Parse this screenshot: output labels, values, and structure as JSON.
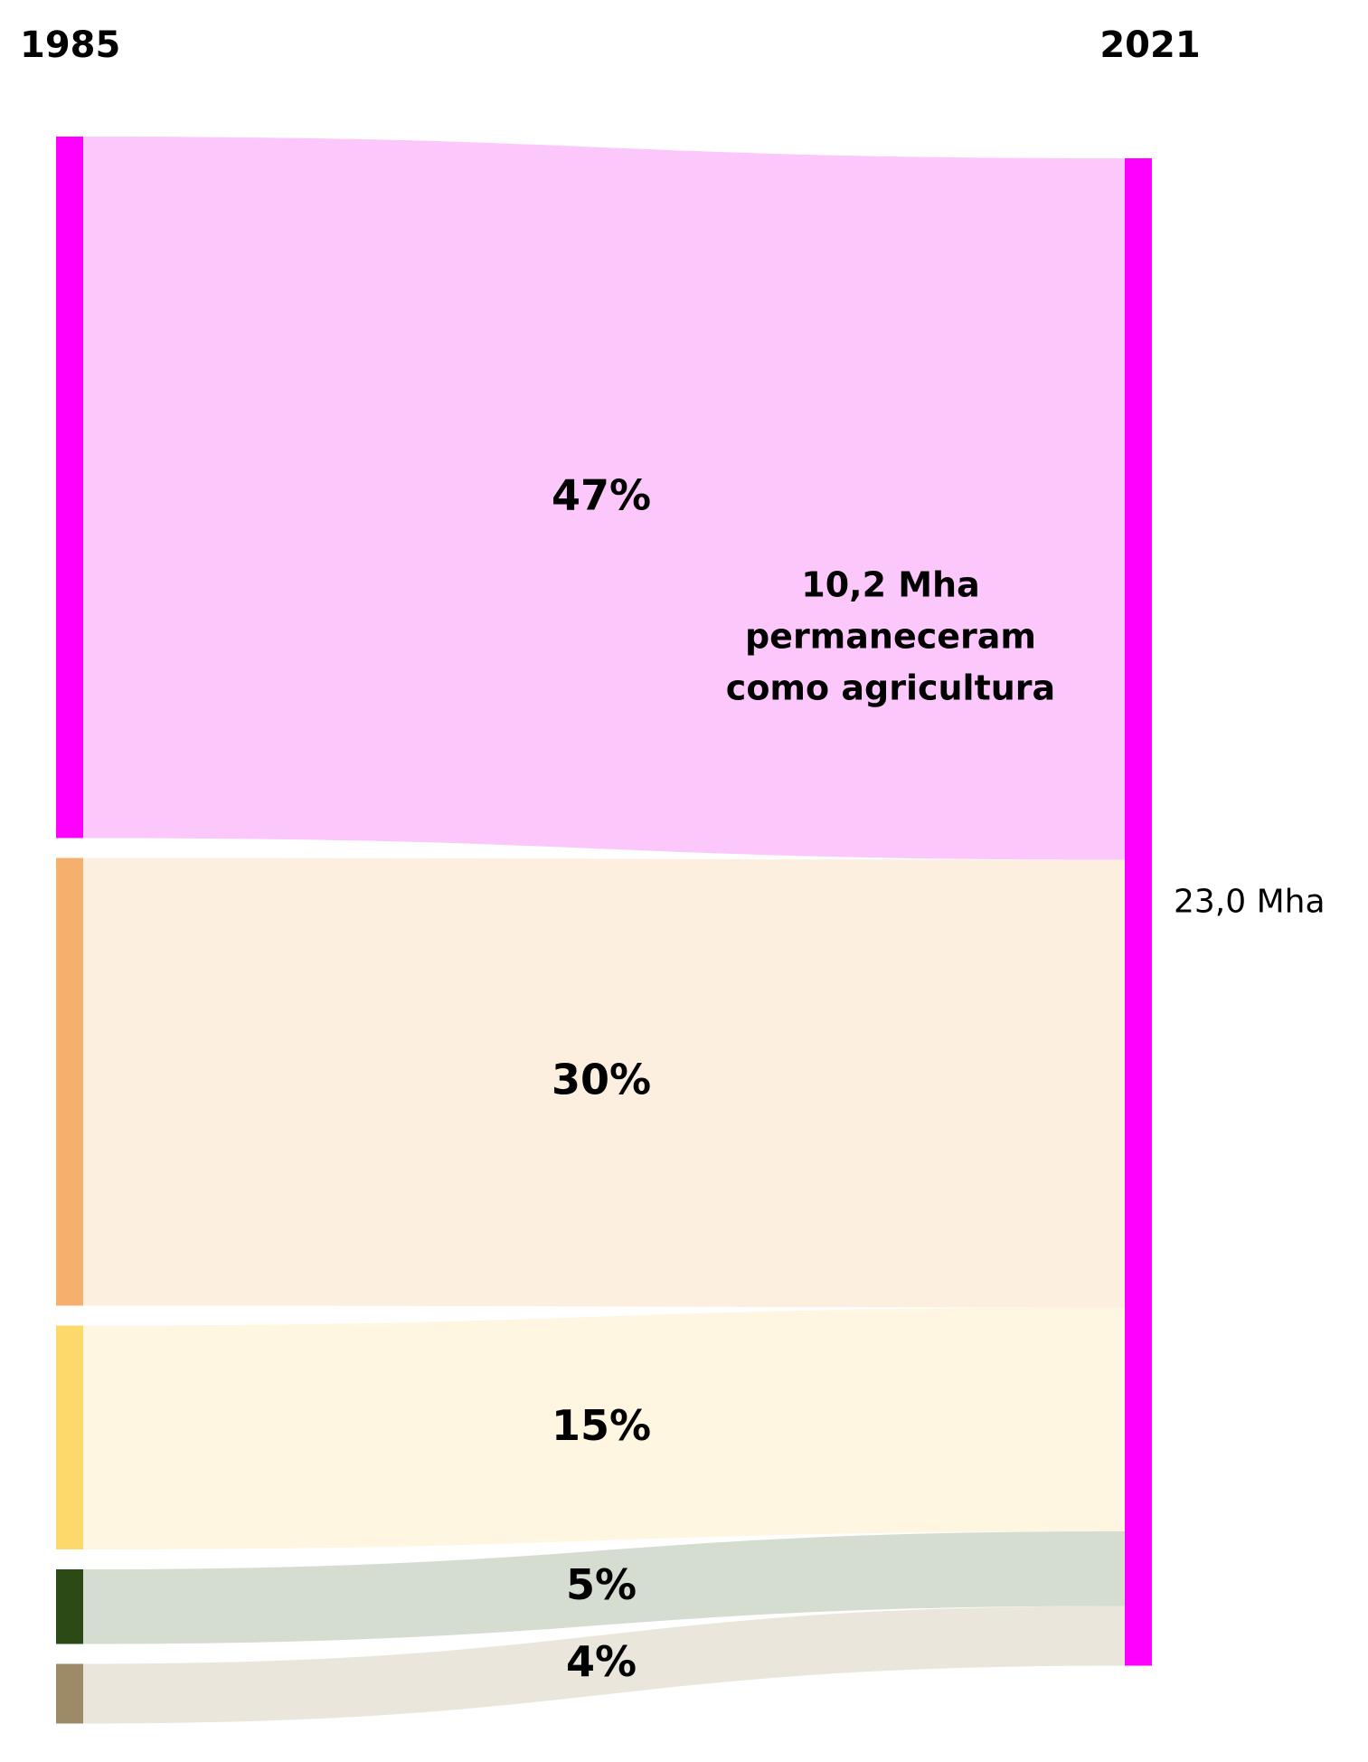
{
  "chart_data": {
    "type": "sankey",
    "source_label": "1985",
    "target_label": "2021",
    "target_value_label": "23,0 Mha",
    "target_color": "#ff00ff",
    "values": [
      47,
      30,
      15,
      5,
      4
    ],
    "value_labels": [
      "47%",
      "30%",
      "15%",
      "5%",
      "4%"
    ],
    "node_colors": [
      "#ff00ff",
      "#f5b06e",
      "#fdd86a",
      "#2b4a16",
      "#9c8b66"
    ],
    "flow_colors": [
      "#fcc8fc",
      "#fcefe0",
      "#fef6e0",
      "#d5dcd0",
      "#eae6dc"
    ],
    "annotation": [
      "10,2 Mha",
      "permaneceram",
      "como agricultura"
    ]
  }
}
